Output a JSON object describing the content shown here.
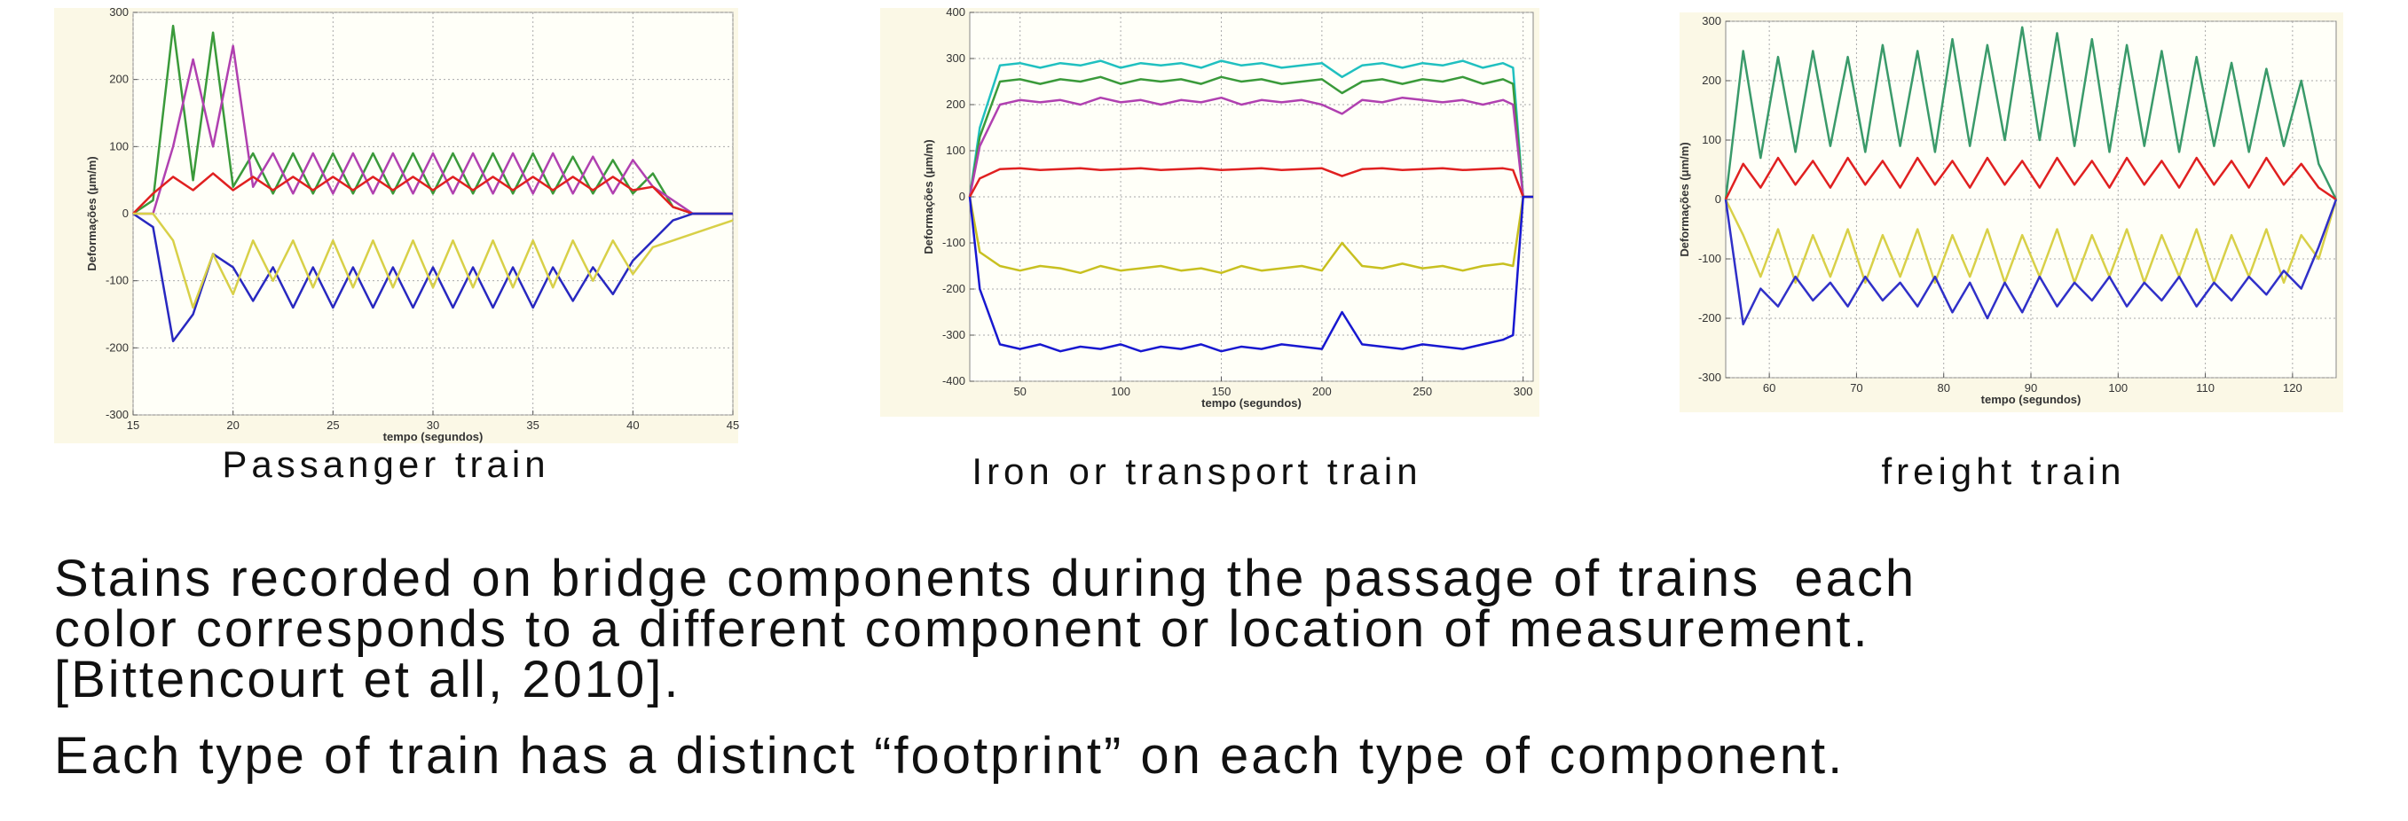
{
  "chart_data": [
    {
      "type": "line",
      "xlabel": "tempo (segundos)",
      "ylabel": "Deformações (μm/m)",
      "xlim": [
        15,
        45
      ],
      "xticks": [
        15,
        20,
        25,
        30,
        35,
        40,
        45
      ],
      "ylim": [
        -300,
        300
      ],
      "yticks": [
        -300,
        -200,
        -100,
        0,
        100,
        200,
        300
      ],
      "grid": true,
      "x": [
        15,
        16,
        17,
        18,
        19,
        20,
        21,
        22,
        23,
        24,
        25,
        26,
        27,
        28,
        29,
        30,
        31,
        32,
        33,
        34,
        35,
        36,
        37,
        38,
        39,
        40,
        41,
        42,
        43,
        44,
        45
      ],
      "series": [
        {
          "color": "#3a9a3a",
          "values": [
            0,
            20,
            280,
            50,
            270,
            40,
            90,
            30,
            90,
            30,
            90,
            30,
            90,
            30,
            90,
            30,
            90,
            30,
            90,
            30,
            90,
            30,
            85,
            30,
            80,
            30,
            60,
            10,
            0,
            0,
            0
          ]
        },
        {
          "color": "#b040b0",
          "values": [
            0,
            0,
            100,
            230,
            100,
            250,
            40,
            90,
            30,
            90,
            30,
            90,
            30,
            90,
            30,
            90,
            30,
            90,
            30,
            90,
            30,
            90,
            30,
            85,
            30,
            80,
            40,
            20,
            0,
            0,
            0
          ]
        },
        {
          "color": "#e02020",
          "values": [
            0,
            30,
            55,
            35,
            60,
            35,
            55,
            35,
            55,
            35,
            55,
            35,
            55,
            35,
            55,
            35,
            55,
            35,
            55,
            35,
            55,
            35,
            55,
            35,
            55,
            35,
            40,
            10,
            0,
            0,
            0
          ]
        },
        {
          "color": "#2828c0",
          "values": [
            0,
            -20,
            -190,
            -150,
            -60,
            -80,
            -130,
            -80,
            -140,
            -80,
            -140,
            -80,
            -140,
            -80,
            -140,
            -80,
            -140,
            -80,
            -140,
            -80,
            -140,
            -80,
            -130,
            -80,
            -120,
            -70,
            -40,
            -10,
            0,
            0,
            0
          ]
        },
        {
          "color": "#d8d048",
          "values": [
            0,
            0,
            -40,
            -140,
            -60,
            -120,
            -40,
            -100,
            -40,
            -110,
            -40,
            -110,
            -40,
            -110,
            -40,
            -110,
            -40,
            -110,
            -40,
            -110,
            -40,
            -110,
            -40,
            -100,
            -40,
            -90,
            -50,
            -40,
            -30,
            -20,
            -10
          ]
        }
      ]
    },
    {
      "type": "line",
      "xlabel": "tempo (segundos)",
      "ylabel": "Deformações (μm/m)",
      "xlim": [
        25,
        305
      ],
      "xticks": [
        50,
        100,
        150,
        200,
        250,
        300
      ],
      "ylim": [
        -400,
        400
      ],
      "yticks": [
        -400,
        -300,
        -200,
        -100,
        0,
        100,
        200,
        300,
        400
      ],
      "grid": true,
      "x": [
        25,
        30,
        40,
        50,
        60,
        70,
        80,
        90,
        100,
        110,
        120,
        130,
        140,
        150,
        160,
        170,
        180,
        190,
        200,
        210,
        220,
        230,
        240,
        250,
        260,
        270,
        280,
        290,
        295,
        300,
        305
      ],
      "series": [
        {
          "color": "#20c0c0",
          "values": [
            0,
            150,
            285,
            290,
            280,
            290,
            285,
            295,
            280,
            290,
            285,
            290,
            280,
            295,
            285,
            290,
            280,
            285,
            290,
            260,
            285,
            290,
            280,
            290,
            285,
            295,
            280,
            290,
            280,
            0,
            0
          ]
        },
        {
          "color": "#3a9a3a",
          "values": [
            0,
            130,
            250,
            255,
            245,
            255,
            250,
            260,
            245,
            255,
            250,
            255,
            245,
            260,
            250,
            255,
            245,
            250,
            255,
            225,
            250,
            255,
            245,
            255,
            250,
            260,
            245,
            255,
            245,
            0,
            0
          ]
        },
        {
          "color": "#b040b0",
          "values": [
            0,
            110,
            200,
            210,
            205,
            210,
            200,
            215,
            205,
            210,
            200,
            210,
            205,
            215,
            200,
            210,
            205,
            210,
            200,
            180,
            210,
            205,
            215,
            210,
            205,
            210,
            200,
            210,
            200,
            0,
            0
          ]
        },
        {
          "color": "#e02020",
          "values": [
            0,
            40,
            60,
            62,
            58,
            60,
            62,
            58,
            60,
            62,
            58,
            60,
            62,
            58,
            60,
            62,
            58,
            60,
            62,
            45,
            60,
            62,
            58,
            60,
            62,
            58,
            60,
            62,
            58,
            0,
            0
          ]
        },
        {
          "color": "#c8c020",
          "values": [
            0,
            -120,
            -150,
            -160,
            -150,
            -155,
            -165,
            -150,
            -160,
            -155,
            -150,
            -160,
            -155,
            -165,
            -150,
            -160,
            -155,
            -150,
            -160,
            -100,
            -150,
            -155,
            -145,
            -155,
            -150,
            -160,
            -150,
            -145,
            -150,
            0,
            0
          ]
        },
        {
          "color": "#1818d0",
          "values": [
            0,
            -200,
            -320,
            -330,
            -320,
            -335,
            -325,
            -330,
            -320,
            -335,
            -325,
            -330,
            -320,
            -335,
            -325,
            -330,
            -320,
            -325,
            -330,
            -250,
            -320,
            -325,
            -330,
            -320,
            -325,
            -330,
            -320,
            -310,
            -300,
            0,
            0
          ]
        }
      ]
    },
    {
      "type": "line",
      "xlabel": "tempo (segundos)",
      "ylabel": "Deformações (μm/m)",
      "xlim": [
        55,
        125
      ],
      "xticks": [
        60,
        70,
        80,
        90,
        100,
        110,
        120
      ],
      "ylim": [
        -300,
        300
      ],
      "yticks": [
        -300,
        -200,
        -100,
        0,
        100,
        200,
        300
      ],
      "grid": true,
      "x": [
        55,
        57,
        59,
        61,
        63,
        65,
        67,
        69,
        71,
        73,
        75,
        77,
        79,
        81,
        83,
        85,
        87,
        89,
        91,
        93,
        95,
        97,
        99,
        101,
        103,
        105,
        107,
        109,
        111,
        113,
        115,
        117,
        119,
        121,
        123,
        125
      ],
      "series": [
        {
          "color": "#3a9a6a",
          "values": [
            0,
            250,
            70,
            240,
            80,
            250,
            90,
            240,
            80,
            260,
            90,
            250,
            80,
            270,
            90,
            260,
            100,
            290,
            100,
            280,
            90,
            270,
            80,
            260,
            90,
            250,
            80,
            240,
            90,
            230,
            80,
            220,
            90,
            200,
            60,
            0
          ]
        },
        {
          "color": "#e02020",
          "values": [
            0,
            60,
            20,
            70,
            25,
            65,
            20,
            70,
            25,
            65,
            20,
            70,
            25,
            65,
            20,
            70,
            25,
            65,
            20,
            70,
            25,
            65,
            20,
            70,
            25,
            65,
            20,
            70,
            25,
            65,
            20,
            70,
            25,
            60,
            20,
            0
          ]
        },
        {
          "color": "#d8d048",
          "values": [
            0,
            -60,
            -130,
            -50,
            -140,
            -60,
            -130,
            -50,
            -140,
            -60,
            -130,
            -50,
            -140,
            -60,
            -130,
            -50,
            -140,
            -60,
            -130,
            -50,
            -140,
            -60,
            -130,
            -50,
            -140,
            -60,
            -130,
            -50,
            -140,
            -60,
            -130,
            -50,
            -140,
            -60,
            -100,
            0
          ]
        },
        {
          "color": "#3030c8",
          "values": [
            0,
            -210,
            -150,
            -180,
            -130,
            -170,
            -140,
            -180,
            -130,
            -170,
            -140,
            -180,
            -130,
            -190,
            -140,
            -200,
            -140,
            -190,
            -130,
            -180,
            -140,
            -170,
            -130,
            -180,
            -140,
            -170,
            -130,
            -180,
            -140,
            -170,
            -130,
            -160,
            -120,
            -150,
            -80,
            0
          ]
        }
      ]
    }
  ],
  "captions": [
    "Passanger train",
    "Iron or transport train",
    "freight train"
  ],
  "text": {
    "lines": [
      "Stains recorded on bridge components during the passage of trains  each",
      "color corresponds to a different component or location of measurement.",
      "[Bittencourt et all, 2010].",
      "Each type of train has a distinct “footprint” on each type of component."
    ]
  }
}
